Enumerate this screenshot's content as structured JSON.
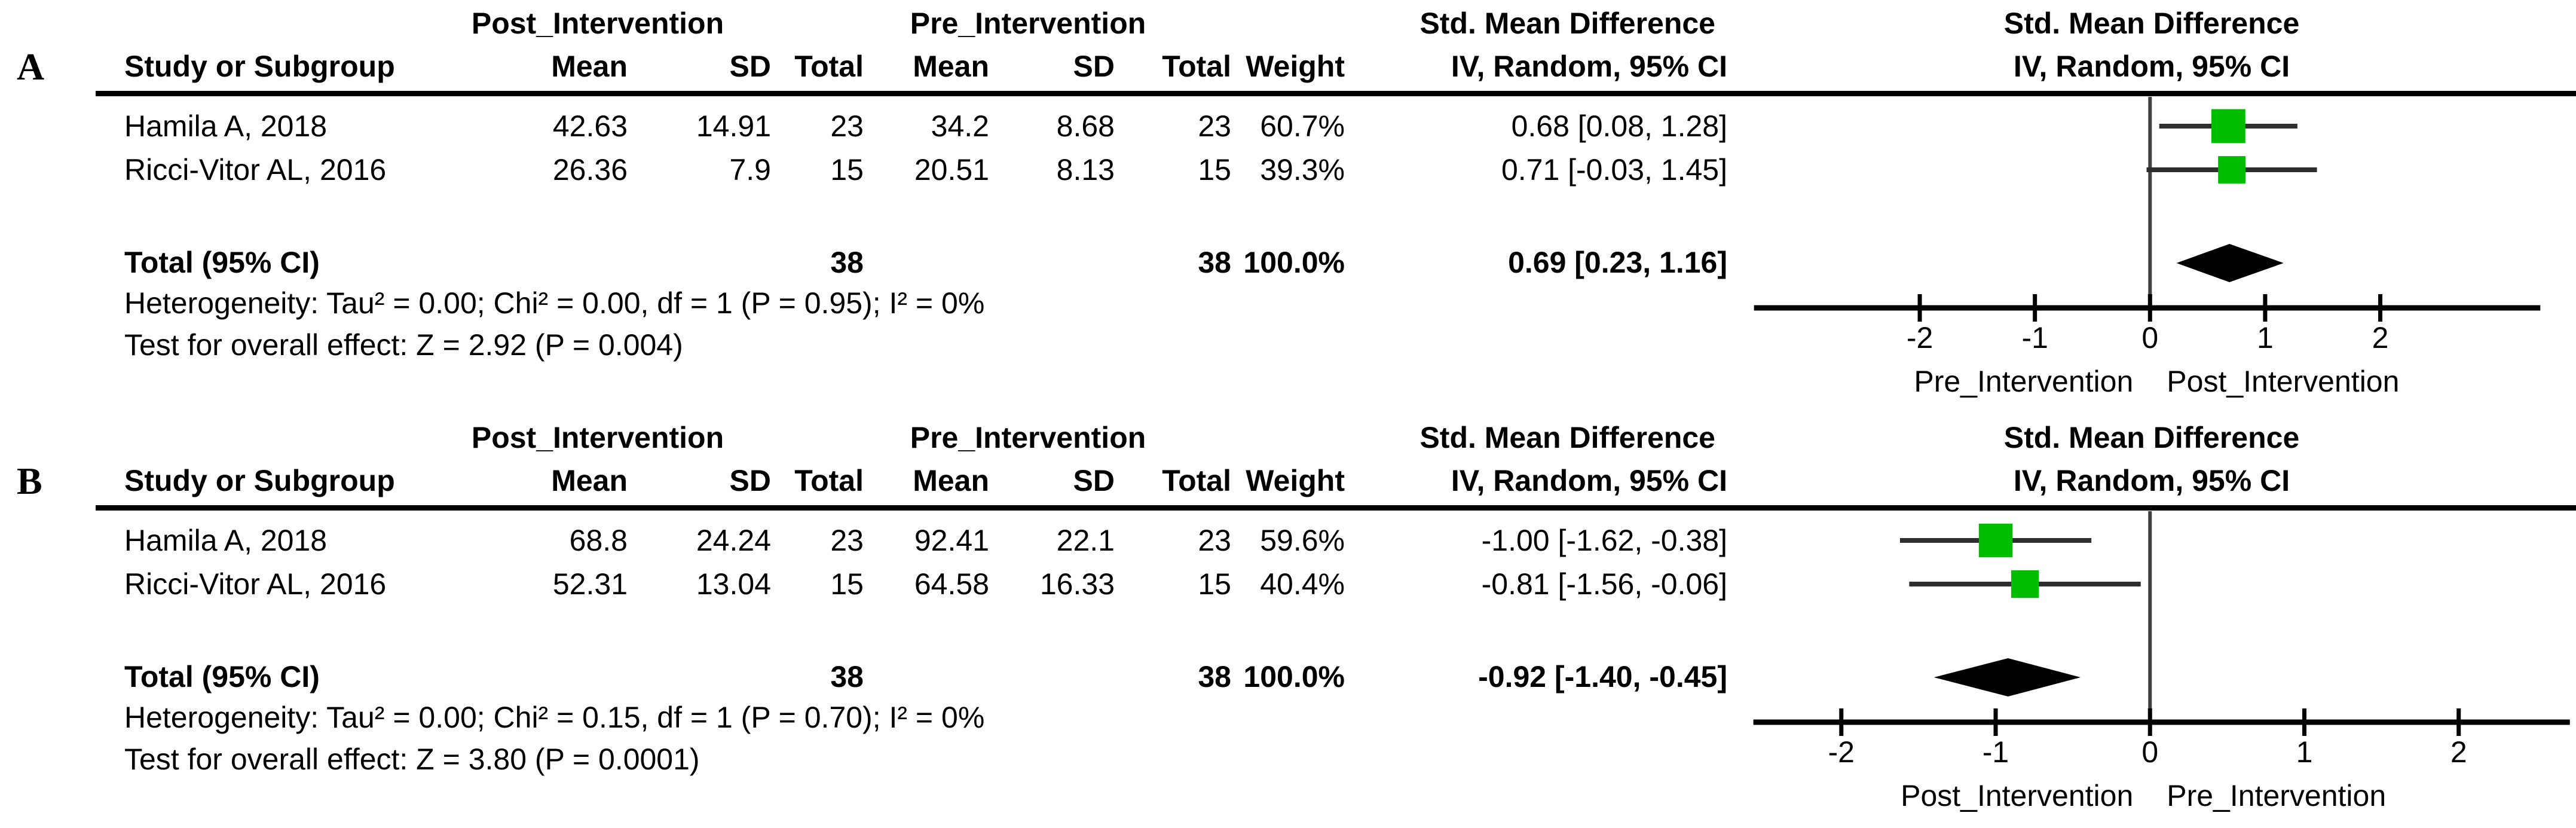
{
  "colors": {
    "marker_green": "#00BD00",
    "ci_line": "#2e2e2e",
    "zero_line": "#404040",
    "axis_black": "#000000"
  },
  "chart_data": [
    {
      "type": "forest",
      "panel_label": "A",
      "columns": {
        "study": "Study or Subgroup",
        "group_post": "Post_Intervention",
        "group_pre": "Pre_Intervention",
        "smd": "Std. Mean Difference",
        "mean": "Mean",
        "sd": "SD",
        "total": "Total",
        "weight": "Weight",
        "ci": "IV, Random, 95% CI"
      },
      "rows": [
        {
          "study": "Hamila A, 2018",
          "mean_post": "42.63",
          "sd_post": "14.91",
          "n_post": "23",
          "mean_pre": "34.2",
          "sd_pre": "8.68",
          "n_pre": "23",
          "weight": "60.7%",
          "ci": "0.68 [0.08, 1.28]",
          "est": 0.68,
          "lo": 0.08,
          "hi": 1.28,
          "weight_pct": 60.7
        },
        {
          "study": "Ricci-Vitor AL, 2016",
          "mean_post": "26.36",
          "sd_post": "7.9",
          "n_post": "15",
          "mean_pre": "20.51",
          "sd_pre": "8.13",
          "n_pre": "15",
          "weight": "39.3%",
          "ci": "0.71 [-0.03, 1.45]",
          "est": 0.71,
          "lo": -0.03,
          "hi": 1.45,
          "weight_pct": 39.3
        }
      ],
      "total": {
        "label": "Total (95% CI)",
        "n_post": "38",
        "n_pre": "38",
        "weight": "100.0%",
        "ci": "0.69 [0.23, 1.16]",
        "est": 0.69,
        "lo": 0.23,
        "hi": 1.16
      },
      "heterogeneity": "Heterogeneity: Tau² = 0.00; Chi² = 0.00, df = 1 (P = 0.95); I² = 0%",
      "overall_effect": "Test for overall effect: Z = 2.92 (P = 0.004)",
      "plot": {
        "header1": "Std. Mean Difference",
        "header2": "IV, Random, 95% CI",
        "xlim": [
          -3.62,
          3.7
        ],
        "axis_span": [
          -3.44,
          3.39
        ],
        "ticks": [
          -2,
          -1,
          0,
          1,
          2
        ],
        "tick_labels": [
          "-2",
          "-1",
          "0",
          "1",
          "2"
        ],
        "favours_left": "Pre_Intervention",
        "favours_right": "Post_Intervention"
      }
    },
    {
      "type": "forest",
      "panel_label": "B",
      "columns": {
        "study": "Study or Subgroup",
        "group_post": "Post_Intervention",
        "group_pre": "Pre_Intervention",
        "smd": "Std. Mean Difference",
        "mean": "Mean",
        "sd": "SD",
        "total": "Total",
        "weight": "Weight",
        "ci": "IV, Random, 95% CI"
      },
      "rows": [
        {
          "study": "Hamila A, 2018",
          "mean_post": "68.8",
          "sd_post": "24.24",
          "n_post": "23",
          "mean_pre": "92.41",
          "sd_pre": "22.1",
          "n_pre": "23",
          "weight": "59.6%",
          "ci": "-1.00 [-1.62, -0.38]",
          "est": -1.0,
          "lo": -1.62,
          "hi": -0.38,
          "weight_pct": 59.6
        },
        {
          "study": "Ricci-Vitor AL, 2016",
          "mean_post": "52.31",
          "sd_post": "13.04",
          "n_post": "15",
          "mean_pre": "64.58",
          "sd_pre": "16.33",
          "n_pre": "15",
          "weight": "40.4%",
          "ci": "-0.81 [-1.56, -0.06]",
          "est": -0.81,
          "lo": -1.56,
          "hi": -0.06,
          "weight_pct": 40.4
        }
      ],
      "total": {
        "label": "Total (95% CI)",
        "n_post": "38",
        "n_pre": "38",
        "weight": "100.0%",
        "ci": "-0.92 [-1.40, -0.45]",
        "est": -0.92,
        "lo": -1.4,
        "hi": -0.45
      },
      "heterogeneity": "Heterogeneity: Tau² = 0.00; Chi² = 0.15, df = 1 (P = 0.70); I² = 0%",
      "overall_effect": "Test for overall effect: Z = 3.80 (P = 0.0001)",
      "plot": {
        "header1": "Std. Mean Difference",
        "header2": "IV, Random, 95% CI",
        "xlim": [
          -2.7,
          2.76
        ],
        "axis_span": [
          -2.57,
          2.72
        ],
        "ticks": [
          -2,
          -1,
          0,
          1,
          2
        ],
        "tick_labels": [
          "-2",
          "-1",
          "0",
          "1",
          "2"
        ],
        "favours_left": "Post_Intervention",
        "favours_right": "Pre_Intervention"
      }
    }
  ]
}
